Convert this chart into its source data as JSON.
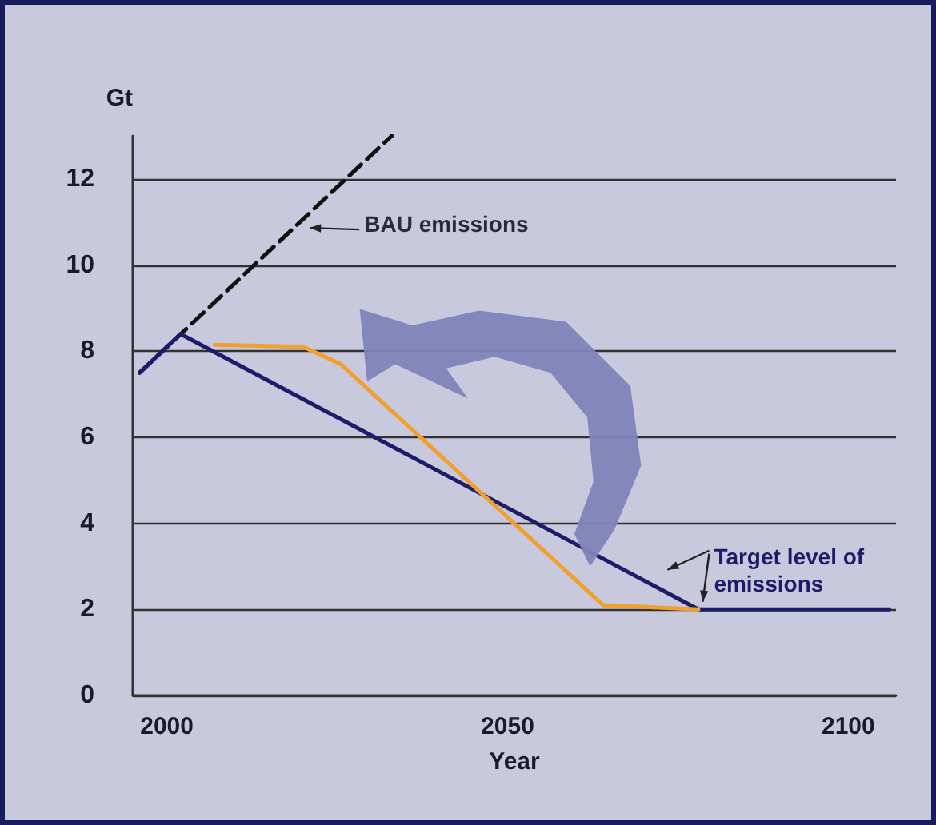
{
  "chart_data": {
    "type": "line",
    "xlabel": "Year",
    "ylabel": "Gt",
    "xlim": [
      1995,
      2107
    ],
    "xticks": [
      2000,
      2050,
      2100
    ],
    "ylim": [
      0,
      13
    ],
    "yticks": [
      0,
      2,
      4,
      6,
      8,
      10,
      12
    ],
    "grid": "y",
    "marker": "none",
    "series": [
      {
        "color": "#111111",
        "line_style": "dashed",
        "x": [
          1996,
          2033
        ],
        "values": [
          7.5,
          13
        ]
      },
      {
        "color": "#1c1c6b",
        "line_style": "solid",
        "x": [
          1996,
          2002,
          2078,
          2106
        ],
        "values": [
          7.5,
          8.4,
          2,
          2
        ]
      },
      {
        "color": "#f0a030",
        "line_style": "solid",
        "x": [
          2007,
          2020,
          2025.5,
          2064,
          2078
        ],
        "values": [
          8.15,
          8.1,
          7.7,
          2.1,
          2
        ]
      }
    ],
    "annotations": [
      {
        "text": "BAU emissions",
        "x": 2020.5,
        "y": 10.9
      },
      {
        "text": "Target level of emissions",
        "x": 2073,
        "y": 2.4
      }
    ]
  }
}
